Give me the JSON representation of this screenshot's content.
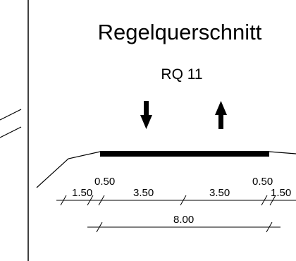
{
  "drawing": {
    "title": "Regelquerschnitt",
    "subtitle": "RQ 11",
    "traffic_directions": [
      "down",
      "up"
    ],
    "dimensions": {
      "left_shoulder": "1.50",
      "left_edge_strip": "0.50",
      "left_lane": "3.50",
      "right_lane": "3.50",
      "right_edge_strip": "0.50",
      "right_shoulder": "1.50",
      "total_paved_width": "8.00"
    }
  },
  "colors": {
    "ink": "#000000",
    "background": "#ffffff"
  }
}
